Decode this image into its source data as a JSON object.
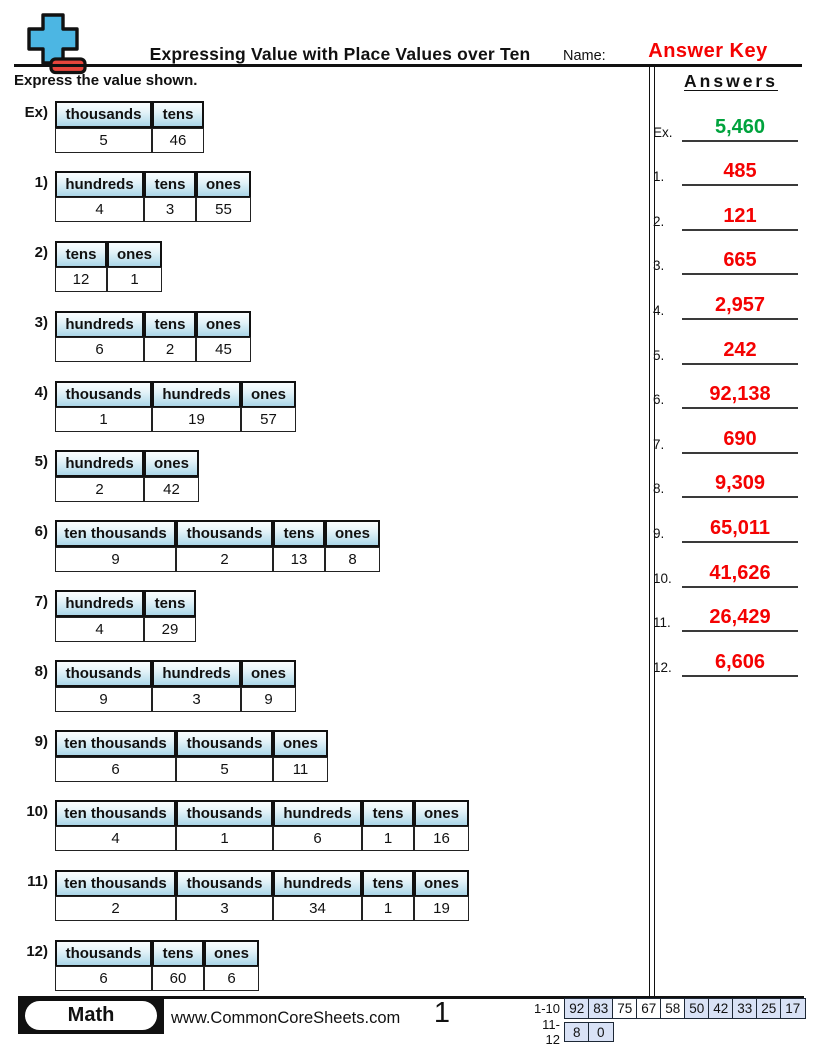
{
  "header": {
    "title": "Expressing Value with Place Values over Ten",
    "name_label": "Name:",
    "answer_key": "Answer Key",
    "instruction": "Express the value shown."
  },
  "problems": [
    {
      "label": "Ex)",
      "columns": [
        "thousands",
        "tens"
      ],
      "values": [
        "5",
        "46"
      ]
    },
    {
      "label": "1)",
      "columns": [
        "hundreds",
        "tens",
        "ones"
      ],
      "values": [
        "4",
        "3",
        "55"
      ]
    },
    {
      "label": "2)",
      "columns": [
        "tens",
        "ones"
      ],
      "values": [
        "12",
        "1"
      ]
    },
    {
      "label": "3)",
      "columns": [
        "hundreds",
        "tens",
        "ones"
      ],
      "values": [
        "6",
        "2",
        "45"
      ]
    },
    {
      "label": "4)",
      "columns": [
        "thousands",
        "hundreds",
        "ones"
      ],
      "values": [
        "1",
        "19",
        "57"
      ]
    },
    {
      "label": "5)",
      "columns": [
        "hundreds",
        "ones"
      ],
      "values": [
        "2",
        "42"
      ]
    },
    {
      "label": "6)",
      "columns": [
        "ten thousands",
        "thousands",
        "tens",
        "ones"
      ],
      "values": [
        "9",
        "2",
        "13",
        "8"
      ]
    },
    {
      "label": "7)",
      "columns": [
        "hundreds",
        "tens"
      ],
      "values": [
        "4",
        "29"
      ]
    },
    {
      "label": "8)",
      "columns": [
        "thousands",
        "hundreds",
        "ones"
      ],
      "values": [
        "9",
        "3",
        "9"
      ]
    },
    {
      "label": "9)",
      "columns": [
        "ten thousands",
        "thousands",
        "ones"
      ],
      "values": [
        "6",
        "5",
        "11"
      ]
    },
    {
      "label": "10)",
      "columns": [
        "ten thousands",
        "thousands",
        "hundreds",
        "tens",
        "ones"
      ],
      "values": [
        "4",
        "1",
        "6",
        "1",
        "16"
      ]
    },
    {
      "label": "11)",
      "columns": [
        "ten thousands",
        "thousands",
        "hundreds",
        "tens",
        "ones"
      ],
      "values": [
        "2",
        "3",
        "34",
        "1",
        "19"
      ]
    },
    {
      "label": "12)",
      "columns": [
        "thousands",
        "tens",
        "ones"
      ],
      "values": [
        "6",
        "60",
        "6"
      ]
    }
  ],
  "answers": {
    "title": "Answers",
    "items": [
      {
        "num": "Ex.",
        "value": "5,460",
        "correct": true
      },
      {
        "num": "1.",
        "value": "485"
      },
      {
        "num": "2.",
        "value": "121"
      },
      {
        "num": "3.",
        "value": "665"
      },
      {
        "num": "4.",
        "value": "2,957"
      },
      {
        "num": "5.",
        "value": "242"
      },
      {
        "num": "6.",
        "value": "92,138"
      },
      {
        "num": "7.",
        "value": "690"
      },
      {
        "num": "8.",
        "value": "9,309"
      },
      {
        "num": "9.",
        "value": "65,011"
      },
      {
        "num": "10.",
        "value": "41,626"
      },
      {
        "num": "11.",
        "value": "26,429"
      },
      {
        "num": "12.",
        "value": "6,606"
      }
    ]
  },
  "footer": {
    "brand": "Math",
    "website": "www.CommonCoreSheets.com",
    "page_number": "1",
    "score_rows": [
      {
        "label": "1-10",
        "cells": [
          {
            "v": "92",
            "hl": true
          },
          {
            "v": "83",
            "hl": true
          },
          {
            "v": "75",
            "hl": false
          },
          {
            "v": "67",
            "hl": false
          },
          {
            "v": "58",
            "hl": false
          },
          {
            "v": "50",
            "hl": true
          },
          {
            "v": "42",
            "hl": true
          },
          {
            "v": "33",
            "hl": true
          },
          {
            "v": "25",
            "hl": true
          },
          {
            "v": "17",
            "hl": true
          }
        ]
      },
      {
        "label": "11-12",
        "cells": [
          {
            "v": "8",
            "hl": true
          },
          {
            "v": "0",
            "hl": true
          }
        ]
      }
    ]
  },
  "colors": {
    "accent_red": "#f40202",
    "example_green": "#00a33d",
    "table_header_blue": "#abd6e8",
    "score_highlight_blue": "#d9e2f6",
    "logo_blue": "#4cb6e3",
    "logo_red": "#e8453c"
  }
}
